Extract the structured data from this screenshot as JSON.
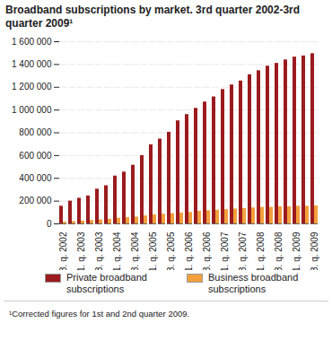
{
  "chart_data": {
    "type": "bar",
    "title": "Broadband subscriptions by market. 3rd quarter 2002-3rd quarter 2009¹",
    "caption": "¹Corrected figures for 1st and 2nd quarter 2009.",
    "categories": [
      "3. q. 2002",
      null,
      "1. q. 2003",
      null,
      "3. q. 2003",
      null,
      "1. q. 2004",
      null,
      "3. q. 2004",
      null,
      "1. q. 2005",
      null,
      "3. q. 2005",
      null,
      "1. q. 2006",
      null,
      "3. q. 2006",
      null,
      "1. q. 2007",
      null,
      "3. q. 2007",
      null,
      "1. q. 2008",
      null,
      "3. q. 2008",
      null,
      "1. q. 2009",
      null,
      "3. q. 2009"
    ],
    "series": [
      {
        "name": "Private broadband subscriptions",
        "color": "#9b1b1e",
        "values": [
          155000,
          200000,
          225000,
          245000,
          305000,
          335000,
          420000,
          455000,
          515000,
          600000,
          695000,
          745000,
          805000,
          905000,
          960000,
          1015000,
          1070000,
          1115000,
          1180000,
          1220000,
          1255000,
          1310000,
          1345000,
          1385000,
          1410000,
          1440000,
          1465000,
          1475000,
          1495000
        ]
      },
      {
        "name": "Business broadband subscriptions",
        "color": "#f3a03c",
        "values": [
          15000,
          20000,
          25000,
          30000,
          35000,
          40000,
          50000,
          55000,
          60000,
          70000,
          80000,
          85000,
          90000,
          95000,
          100000,
          110000,
          115000,
          120000,
          125000,
          130000,
          135000,
          140000,
          145000,
          145000,
          150000,
          150000,
          155000,
          155000,
          158000
        ]
      }
    ],
    "ylim": [
      0,
      1600000
    ],
    "yticks": [
      0,
      {
        "value": 200000,
        "label": "200 000"
      },
      {
        "value": 400000,
        "label": "400 000"
      },
      {
        "value": 600000,
        "label": "600 000"
      },
      {
        "value": 800000,
        "label": "800 000"
      },
      {
        "value": 1000000,
        "label": "1 000 000"
      },
      {
        "value": 1200000,
        "label": "1 200 000"
      },
      {
        "value": 1400000,
        "label": "1 400 000"
      },
      {
        "value": 1600000,
        "label": "1 600 000"
      }
    ],
    "grid": true,
    "legend": "bottom"
  }
}
